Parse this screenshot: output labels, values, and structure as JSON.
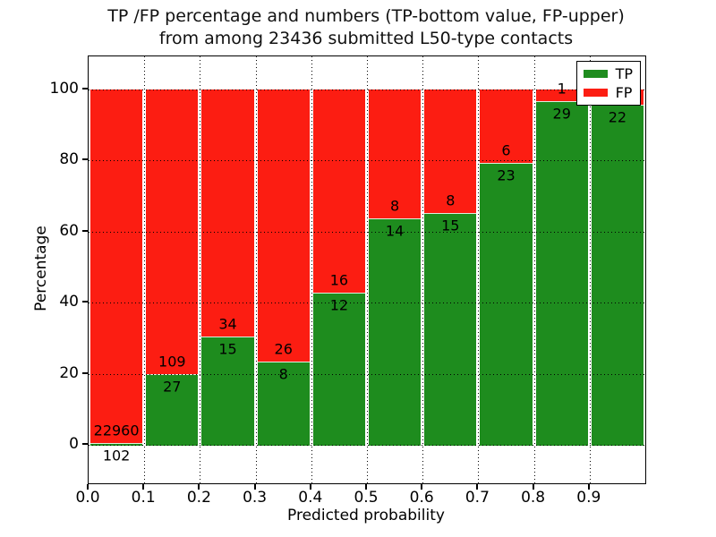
{
  "title": {
    "line1": "TP /FP percentage and numbers (TP-bottom value, FP-upper)",
    "line2": "from among 23436 submitted L50-type contacts"
  },
  "axes": {
    "xlabel": "Predicted probability",
    "ylabel": "Percentage",
    "yticks": [
      0,
      20,
      40,
      60,
      80,
      100
    ],
    "xticks": [
      "0.0",
      "0.1",
      "0.2",
      "0.3",
      "0.4",
      "0.5",
      "0.6",
      "0.7",
      "0.8",
      "0.9"
    ]
  },
  "colors": {
    "tp": "#1e8c1e",
    "fp": "#fc1d12"
  },
  "legend": {
    "items": [
      {
        "label": "TP",
        "color_key": "tp"
      },
      {
        "label": "FP",
        "color_key": "fp"
      }
    ]
  },
  "chart_data": {
    "type": "bar",
    "stacked": true,
    "title": "TP /FP percentage and numbers (TP-bottom value, FP-upper) from among 23436 submitted L50-type contacts",
    "xlabel": "Predicted probability",
    "ylabel": "Percentage",
    "total_submitted_contacts": 23436,
    "x_bin_edges": [
      0.0,
      0.1,
      0.2,
      0.3,
      0.4,
      0.5,
      0.6,
      0.7,
      0.8,
      0.9,
      1.0
    ],
    "series": [
      {
        "name": "TP",
        "counts": [
          102,
          27,
          15,
          8,
          12,
          14,
          15,
          23,
          29,
          22
        ]
      },
      {
        "name": "FP",
        "counts": [
          22960,
          109,
          34,
          26,
          16,
          8,
          8,
          6,
          1,
          null
        ]
      }
    ],
    "tp_percent": [
      0.44,
      19.85,
      30.61,
      23.53,
      42.86,
      63.64,
      65.22,
      79.31,
      96.67,
      95.65
    ],
    "bar_labels": [
      {
        "tp": "102",
        "fp": "22960"
      },
      {
        "tp": "27",
        "fp": "109"
      },
      {
        "tp": "15",
        "fp": "34"
      },
      {
        "tp": "8",
        "fp": "26"
      },
      {
        "tp": "12",
        "fp": "16"
      },
      {
        "tp": "14",
        "fp": "8"
      },
      {
        "tp": "15",
        "fp": "8"
      },
      {
        "tp": "23",
        "fp": "6"
      },
      {
        "tp": "29",
        "fp": "1"
      },
      {
        "tp": "22",
        "fp": ""
      }
    ],
    "ylim": [
      -10.8,
      109.3
    ],
    "xlim": [
      0.0,
      1.0
    ],
    "grid": "dotted",
    "legend_position": "upper right"
  }
}
